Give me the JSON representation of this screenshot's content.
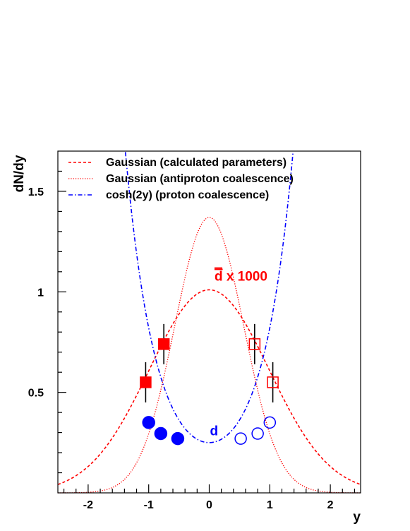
{
  "colors": {
    "red": "#ff0000",
    "blue": "#0000ff",
    "axis": "#000000",
    "errorbar": "#000000"
  },
  "chart_data": {
    "type": "scatter",
    "xlabel": "y",
    "ylabel": "dN/dy",
    "xlim": [
      -2.5,
      2.5
    ],
    "ylim": [
      0,
      1.7
    ],
    "x_ticks": [
      -2,
      -1,
      0,
      1,
      2
    ],
    "x_tick_labels": [
      "-2",
      "-1",
      "0",
      "1",
      "2"
    ],
    "y_ticks": [
      0.5,
      1,
      1.5
    ],
    "y_tick_labels": [
      "0.5",
      "1",
      "1.5"
    ],
    "grid": false,
    "legend_position": "top",
    "legend": [
      {
        "label": "Gaussian (calculated parameters)",
        "style": "dashed",
        "color": "#ff0000"
      },
      {
        "label": "Gaussian (antiproton coalescence)",
        "style": "dotted",
        "color": "#ff0000"
      },
      {
        "label": "cosh(2y) (proton coalescence)",
        "style": "dash-dot",
        "color": "#0000ff"
      }
    ],
    "annotations": [
      {
        "text_bar": "d",
        "text_rest": " x 1000",
        "color": "#ff0000",
        "x": 0.25,
        "y": 1.08
      },
      {
        "text": "d",
        "color": "#0000ff",
        "x": 0.08,
        "y": 0.31
      }
    ],
    "curves": [
      {
        "name": "Gaussian (calculated parameters)",
        "style": "dashed",
        "color": "#ff0000",
        "amplitude": 1.01,
        "sigma": 0.99,
        "x_range": [
          -2.5,
          2.5
        ]
      },
      {
        "name": "Gaussian (antiproton coalescence)",
        "style": "dotted",
        "color": "#ff0000",
        "amplitude": 1.37,
        "sigma": 0.57,
        "x_range": [
          -2.5,
          2.5
        ]
      },
      {
        "name": "cosh(2y) (proton coalescence)",
        "style": "dash-dot",
        "color": "#0000ff",
        "amplitude": 0.25,
        "cosh_factor": 2,
        "cosh_scale": 1.21,
        "x_range": [
          -1.6,
          1.6
        ]
      }
    ],
    "series": [
      {
        "marker": "filled-square",
        "color": "#ff0000",
        "points": [
          {
            "x": -1.05,
            "y": 0.55,
            "err": 0.1
          },
          {
            "x": -0.75,
            "y": 0.74,
            "err": 0.1
          }
        ]
      },
      {
        "marker": "open-square",
        "color": "#ff0000",
        "points": [
          {
            "x": 0.75,
            "y": 0.74,
            "err": 0.1
          },
          {
            "x": 1.05,
            "y": 0.55,
            "err": 0.1
          }
        ]
      },
      {
        "marker": "filled-circle",
        "color": "#0000ff",
        "points": [
          {
            "x": -1.0,
            "y": 0.35
          },
          {
            "x": -0.8,
            "y": 0.295
          },
          {
            "x": -0.52,
            "y": 0.27
          }
        ]
      },
      {
        "marker": "open-circle",
        "color": "#0000ff",
        "points": [
          {
            "x": 0.52,
            "y": 0.27
          },
          {
            "x": 0.8,
            "y": 0.295
          },
          {
            "x": 1.0,
            "y": 0.35
          }
        ]
      }
    ]
  }
}
